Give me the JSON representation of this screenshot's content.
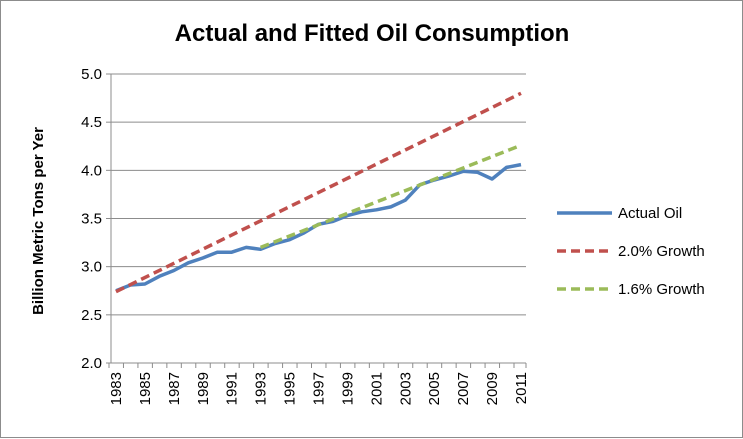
{
  "chart_data": {
    "type": "line",
    "title": "Actual and Fitted Oil Consumption",
    "xlabel": "",
    "ylabel": "Billion Metric Tons per Yer",
    "xlim": [
      1983,
      2011
    ],
    "ylim": [
      2.0,
      5.0
    ],
    "y_ticks": [
      "2.0",
      "2.5",
      "3.0",
      "3.5",
      "4.0",
      "4.5",
      "5.0"
    ],
    "x_ticks": [
      "1983",
      "1985",
      "1987",
      "1989",
      "1991",
      "1993",
      "1995",
      "1997",
      "1999",
      "2001",
      "2003",
      "2005",
      "2007",
      "2009",
      "2011"
    ],
    "grid": "horizontal",
    "legend_position": "right",
    "series": [
      {
        "name": "Actual Oil",
        "style": "solid",
        "color": "#4f81bd",
        "x": [
          1983,
          1984,
          1985,
          1986,
          1987,
          1988,
          1989,
          1990,
          1991,
          1992,
          1993,
          1994,
          1995,
          1996,
          1997,
          1998,
          1999,
          2000,
          2001,
          2002,
          2003,
          2004,
          2005,
          2006,
          2007,
          2008,
          2009,
          2010,
          2011
        ],
        "values": [
          2.75,
          2.81,
          2.82,
          2.9,
          2.96,
          3.04,
          3.09,
          3.15,
          3.15,
          3.2,
          3.18,
          3.24,
          3.28,
          3.35,
          3.44,
          3.47,
          3.53,
          3.57,
          3.59,
          3.62,
          3.69,
          3.85,
          3.9,
          3.94,
          3.99,
          3.98,
          3.91,
          4.03,
          4.06
        ]
      },
      {
        "name": "2.0% Growth",
        "style": "dashed",
        "color": "#c0504d",
        "x": [
          1983,
          2011
        ],
        "values": [
          2.74,
          4.8
        ],
        "growth_rate": 0.02
      },
      {
        "name": "1.6% Growth",
        "style": "dashed",
        "color": "#9bbb59",
        "x": [
          1993,
          2011
        ],
        "values": [
          3.2,
          4.26
        ],
        "growth_rate": 0.016
      }
    ]
  }
}
